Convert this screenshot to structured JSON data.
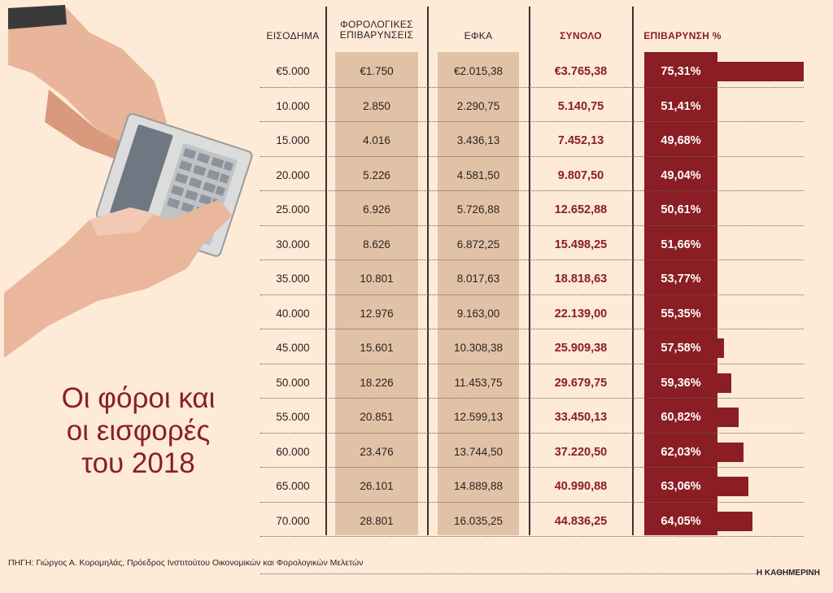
{
  "title_lines": [
    "Οι φόροι και",
    "οι εισφορές",
    "του 2018"
  ],
  "columns": {
    "income": "ΕΙΣΟΔΗΜΑ",
    "tax_line1": "ΦΟΡΟΛΟΓΙΚΕΣ",
    "tax_line2": "ΕΠΙΒΑΡΥΝΣΕΙΣ",
    "efka": "ΕΦΚΑ",
    "total": "ΣΥΝΟΛΟ",
    "burden": "ΕΠΙΒΑΡΥΝΣΗ %"
  },
  "source": "ΠΗΓΗ: Γιώργος Α. Κορομηλάς, Πρόεδρος Ινστιτούτου Οικονομικών και Φορολογικών Μελετών",
  "credit": "Η ΚΑΘΗΜΕΡΙΝΗ",
  "colors": {
    "accent": "#8b1e24",
    "column_shade": "#e2c2a7",
    "background": "#fdebd8"
  },
  "illustration": "hand-calculator-icon",
  "chart_data": {
    "type": "table",
    "rows": [
      {
        "income": "€5.000",
        "tax": "€1.750",
        "efka": "€2.015,38",
        "total": "€3.765,38",
        "pct_label": "75,31%",
        "pct": 75.31
      },
      {
        "income": "10.000",
        "tax": "2.850",
        "efka": "2.290,75",
        "total": "5.140,75",
        "pct_label": "51,41%",
        "pct": 51.41
      },
      {
        "income": "15.000",
        "tax": "4.016",
        "efka": "3.436,13",
        "total": "7.452,13",
        "pct_label": "49,68%",
        "pct": 49.68
      },
      {
        "income": "20.000",
        "tax": "5.226",
        "efka": "4.581,50",
        "total": "9.807,50",
        "pct_label": "49,04%",
        "pct": 49.04
      },
      {
        "income": "25.000",
        "tax": "6.926",
        "efka": "5.726,88",
        "total": "12.652,88",
        "pct_label": "50,61%",
        "pct": 50.61
      },
      {
        "income": "30.000",
        "tax": "8.626",
        "efka": "6.872,25",
        "total": "15.498,25",
        "pct_label": "51,66%",
        "pct": 51.66
      },
      {
        "income": "35.000",
        "tax": "10.801",
        "efka": "8.017,63",
        "total": "18.818,63",
        "pct_label": "53,77%",
        "pct": 53.77
      },
      {
        "income": "40.000",
        "tax": "12.976",
        "efka": "9.163,00",
        "total": "22.139,00",
        "pct_label": "55,35%",
        "pct": 55.35
      },
      {
        "income": "45.000",
        "tax": "15.601",
        "efka": "10.308,38",
        "total": "25.909,38",
        "pct_label": "57,58%",
        "pct": 57.58
      },
      {
        "income": "50.000",
        "tax": "18.226",
        "efka": "11.453,75",
        "total": "29.679,75",
        "pct_label": "59,36%",
        "pct": 59.36
      },
      {
        "income": "55.000",
        "tax": "20.851",
        "efka": "12.599,13",
        "total": "33.450,13",
        "pct_label": "60,82%",
        "pct": 60.82
      },
      {
        "income": "60.000",
        "tax": "23.476",
        "efka": "13.744,50",
        "total": "37.220,50",
        "pct_label": "62,03%",
        "pct": 62.03
      },
      {
        "income": "65.000",
        "tax": "26.101",
        "efka": "14.889,88",
        "total": "40.990,88",
        "pct_label": "63,06%",
        "pct": 63.06
      },
      {
        "income": "70.000",
        "tax": "28.801",
        "efka": "16.035,25",
        "total": "44.836,25",
        "pct_label": "64,05%",
        "pct": 64.05
      }
    ]
  }
}
